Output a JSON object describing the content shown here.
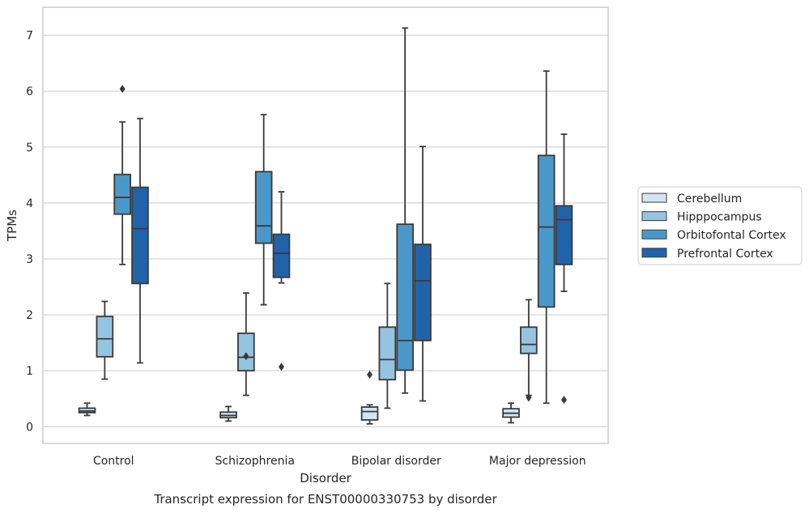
{
  "chart_data": {
    "type": "box",
    "caption": "Transcript expression for ENST00000330753 by disorder",
    "xlabel": "Disorder",
    "ylabel": "TPMs",
    "ylim": [
      -0.3,
      7.5
    ],
    "yticks": [
      0,
      1,
      2,
      3,
      4,
      5,
      6,
      7
    ],
    "grid": true,
    "legend_position": "right",
    "categories": [
      "Control",
      "Schizophrenia",
      "Bipolar disorder",
      "Major depression"
    ],
    "series": [
      {
        "name": "Cerebellum",
        "color": "#d3e4f3",
        "boxes": [
          {
            "whislo": 0.2,
            "q1": 0.25,
            "med": 0.28,
            "q3": 0.33,
            "whishi": 0.42,
            "fliers": []
          },
          {
            "whislo": 0.1,
            "q1": 0.16,
            "med": 0.2,
            "q3": 0.26,
            "whishi": 0.36,
            "fliers": []
          },
          {
            "whislo": 0.05,
            "q1": 0.12,
            "med": 0.27,
            "q3": 0.35,
            "whishi": 0.39,
            "fliers": [
              0.93
            ]
          },
          {
            "whislo": 0.07,
            "q1": 0.17,
            "med": 0.24,
            "q3": 0.32,
            "whishi": 0.42,
            "fliers": []
          }
        ]
      },
      {
        "name": "Hipppocampus",
        "color": "#94c4df",
        "boxes": [
          {
            "whislo": 0.85,
            "q1": 1.25,
            "med": 1.57,
            "q3": 1.97,
            "whishi": 2.24,
            "fliers": []
          },
          {
            "whislo": 0.56,
            "q1": 1.0,
            "med": 1.24,
            "q3": 1.67,
            "whishi": 2.39,
            "fliers": [
              1.26
            ]
          },
          {
            "whislo": 0.33,
            "q1": 0.84,
            "med": 1.2,
            "q3": 1.78,
            "whishi": 2.56,
            "fliers": []
          },
          {
            "whislo": 0.56,
            "q1": 1.31,
            "med": 1.47,
            "q3": 1.78,
            "whishi": 2.27,
            "fliers": [
              0.52
            ]
          }
        ]
      },
      {
        "name": "Orbitofontal Cortex",
        "color": "#4a98c9",
        "boxes": [
          {
            "whislo": 2.9,
            "q1": 3.8,
            "med": 4.1,
            "q3": 4.51,
            "whishi": 5.45,
            "fliers": [
              6.04
            ]
          },
          {
            "whislo": 2.18,
            "q1": 3.28,
            "med": 3.59,
            "q3": 4.56,
            "whishi": 5.58,
            "fliers": []
          },
          {
            "whislo": 0.6,
            "q1": 1.01,
            "med": 1.54,
            "q3": 3.62,
            "whishi": 7.13,
            "fliers": []
          },
          {
            "whislo": 0.42,
            "q1": 2.14,
            "med": 3.57,
            "q3": 4.85,
            "whishi": 6.36,
            "fliers": []
          }
        ]
      },
      {
        "name": "Prefrontal Cortex",
        "color": "#2163aa",
        "boxes": [
          {
            "whislo": 1.14,
            "q1": 2.56,
            "med": 3.54,
            "q3": 4.28,
            "whishi": 5.51,
            "fliers": []
          },
          {
            "whislo": 2.57,
            "q1": 2.67,
            "med": 3.1,
            "q3": 3.44,
            "whishi": 4.2,
            "fliers": [
              1.07
            ]
          },
          {
            "whislo": 0.46,
            "q1": 1.54,
            "med": 2.61,
            "q3": 3.26,
            "whishi": 5.01,
            "fliers": []
          },
          {
            "whislo": 2.42,
            "q1": 2.9,
            "med": 3.7,
            "q3": 3.95,
            "whishi": 5.23,
            "fliers": [
              0.48
            ]
          }
        ]
      }
    ],
    "colors": {
      "grid": "#cccccc",
      "frame": "#cccccc",
      "line": "#3a3a3a",
      "text": "#262626"
    }
  }
}
